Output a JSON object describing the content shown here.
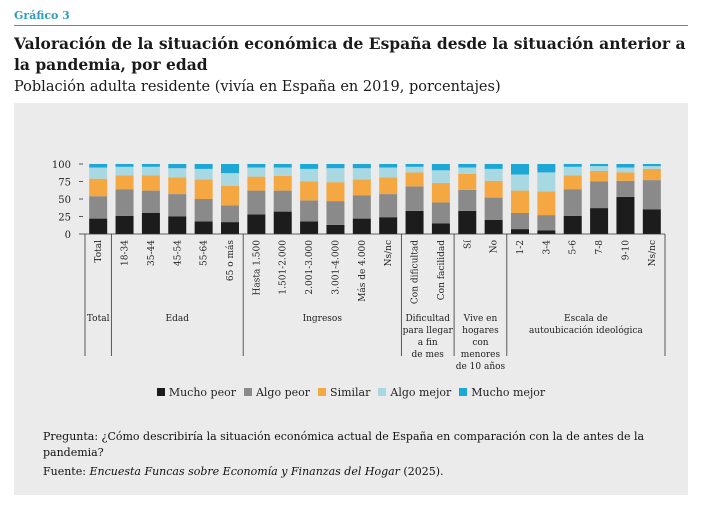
{
  "header": {
    "figure_label": "Gráfico 3",
    "title": "Valoración de la situación económica de España desde la situación anterior a la pandemia, por edad",
    "subtitle": "Población adulta residente (vivía en España en 2019, porcentajes)"
  },
  "chart_data": {
    "type": "bar",
    "stacked": true,
    "ylim": [
      0,
      100
    ],
    "yticks": [
      "0",
      "25",
      "50",
      "75",
      "100"
    ],
    "grid": false,
    "legend_position": "bottom",
    "categories": [
      "Total",
      "18-34",
      "35-44",
      "45-54",
      "55-64",
      "65 o más",
      "Hasta 1.500",
      "1.501-2.000",
      "2.001-3.000",
      "3.001-4.000",
      "Más de 4.000",
      "Ns/nc",
      "Con dificultad",
      "Con facilidad",
      "Sí",
      "No",
      "1-2",
      "3-4",
      "5-6",
      "7-8",
      "9-10",
      "Ns/nc"
    ],
    "groups": [
      {
        "label": [
          "Total"
        ],
        "start": 0,
        "end": 0
      },
      {
        "label": [
          "Edad"
        ],
        "start": 1,
        "end": 5
      },
      {
        "label": [
          "Ingresos"
        ],
        "start": 6,
        "end": 11
      },
      {
        "label": [
          "Dificultad",
          "para llegar",
          "a fin",
          "de mes"
        ],
        "start": 12,
        "end": 13
      },
      {
        "label": [
          "Vive en",
          "hogares",
          "con",
          "menores",
          "de 10 años"
        ],
        "start": 14,
        "end": 15
      },
      {
        "label": [
          "Escala de",
          "autoubicación ideológica"
        ],
        "start": 16,
        "end": 21
      }
    ],
    "series": [
      {
        "name": "Mucho peor",
        "color": "#1c1c1c",
        "values": [
          22,
          26,
          30,
          25,
          18,
          17,
          28,
          32,
          18,
          13,
          22,
          24,
          33,
          15,
          33,
          20,
          7,
          5,
          26,
          37,
          53,
          35
        ]
      },
      {
        "name": "Algo peor",
        "color": "#8a8a8a",
        "values": [
          32,
          38,
          32,
          32,
          32,
          24,
          34,
          30,
          30,
          34,
          33,
          33,
          35,
          30,
          30,
          32,
          23,
          22,
          38,
          38,
          23,
          42
        ]
      },
      {
        "name": "Similar",
        "color": "#f5a842",
        "values": [
          25,
          20,
          22,
          24,
          28,
          28,
          20,
          21,
          27,
          27,
          23,
          24,
          20,
          28,
          23,
          24,
          32,
          34,
          20,
          15,
          12,
          16
        ]
      },
      {
        "name": "Algo mejor",
        "color": "#a8d8e2",
        "values": [
          16,
          12,
          12,
          13,
          15,
          18,
          13,
          12,
          18,
          20,
          16,
          14,
          8,
          18,
          9,
          17,
          23,
          27,
          12,
          7,
          7,
          4
        ]
      },
      {
        "name": "Mucho mejor",
        "color": "#1ca7d6",
        "values": [
          5,
          4,
          4,
          6,
          7,
          13,
          5,
          5,
          7,
          6,
          6,
          5,
          4,
          9,
          5,
          7,
          15,
          12,
          4,
          3,
          5,
          3
        ]
      }
    ]
  },
  "footer": {
    "question": "Pregunta: ¿Cómo describiría la situación económica actual de España en comparación con la de antes de la pandemia?",
    "source_prefix": "Fuente: ",
    "source_title": "Encuesta Funcas sobre Economía y Finanzas del Hogar",
    "source_suffix": " (2025)."
  }
}
